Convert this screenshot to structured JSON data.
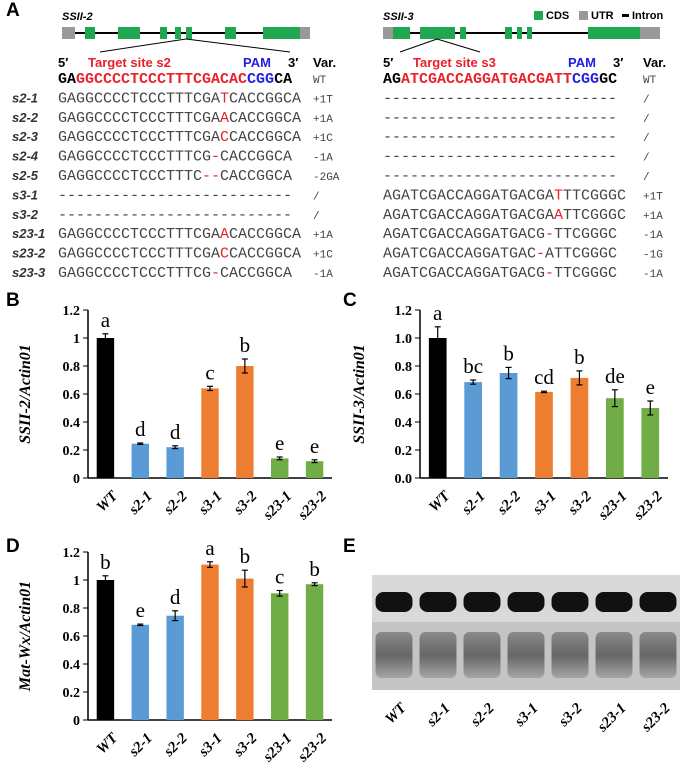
{
  "panel_labels": [
    "A",
    "B",
    "C",
    "D",
    "E"
  ],
  "panel_a": {
    "genes": [
      "SSII-2",
      "SSII-3"
    ],
    "legend": [
      "CDS",
      "UTR",
      "Intron"
    ],
    "headers": [
      {
        "five": "5′",
        "target": "Target site s2",
        "three": "3′",
        "pam": "PAM",
        "var": "Var."
      },
      {
        "five": "5′",
        "target": "Target site s3",
        "three": "3′",
        "pam": "PAM",
        "var": "Var."
      }
    ],
    "rows": [
      {
        "label": null,
        "bold": true,
        "left": {
          "segments": [
            {
              "text": "GA",
              "color": "#000000"
            },
            {
              "text": "GGCCCCTCCCTTTCGACAC",
              "color": "#e8222a"
            },
            {
              "text": "CGG",
              "color": "#1f1fdd"
            },
            {
              "text": "CA",
              "color": "#000000"
            }
          ],
          "var": "WT"
        },
        "right": {
          "segments": [
            {
              "text": "AG",
              "color": "#000000"
            },
            {
              "text": "ATCGACCAGGATGACGATT",
              "color": "#e8222a"
            },
            {
              "text": "CGG",
              "color": "#1f1fdd"
            },
            {
              "text": "GC",
              "color": "#000000"
            }
          ],
          "var": "WT"
        }
      },
      {
        "label": "s2-1",
        "left": {
          "segments": [
            {
              "text": "GAGGCCCCTCCCTTTCGA",
              "color": "#444444"
            },
            {
              "text": "T",
              "color": "#e8222a"
            },
            {
              "text": "CACCGGCA",
              "color": "#444444"
            }
          ],
          "var": "+1T"
        },
        "right": {
          "segments": [
            {
              "text": "--------------------------",
              "color": "#444444"
            }
          ],
          "var": "/"
        }
      },
      {
        "label": "s2-2",
        "left": {
          "segments": [
            {
              "text": "GAGGCCCCTCCCTTTCGA",
              "color": "#444444"
            },
            {
              "text": "A",
              "color": "#e8222a"
            },
            {
              "text": "CACCGGCA",
              "color": "#444444"
            }
          ],
          "var": "+1A"
        },
        "right": {
          "segments": [
            {
              "text": "--------------------------",
              "color": "#444444"
            }
          ],
          "var": "/"
        }
      },
      {
        "label": "s2-3",
        "left": {
          "segments": [
            {
              "text": "GAGGCCCCTCCCTTTCGA",
              "color": "#444444"
            },
            {
              "text": "C",
              "color": "#e8222a"
            },
            {
              "text": "CACCGGCA",
              "color": "#444444"
            }
          ],
          "var": "+1C"
        },
        "right": {
          "segments": [
            {
              "text": "--------------------------",
              "color": "#444444"
            }
          ],
          "var": "/"
        }
      },
      {
        "label": "s2-4",
        "left": {
          "segments": [
            {
              "text": "GAGGCCCCTCCCTTTCG",
              "color": "#444444"
            },
            {
              "text": "-",
              "color": "#e8222a"
            },
            {
              "text": "CACCGGCA",
              "color": "#444444"
            }
          ],
          "var": "-1A"
        },
        "right": {
          "segments": [
            {
              "text": "--------------------------",
              "color": "#444444"
            }
          ],
          "var": "/"
        }
      },
      {
        "label": "s2-5",
        "left": {
          "segments": [
            {
              "text": "GAGGCCCCTCCCTTTC",
              "color": "#444444"
            },
            {
              "text": "--",
              "color": "#e8222a"
            },
            {
              "text": "CACCGGCA",
              "color": "#444444"
            }
          ],
          "var": "-2GA"
        },
        "right": {
          "segments": [
            {
              "text": "--------------------------",
              "color": "#444444"
            }
          ],
          "var": "/"
        }
      },
      {
        "label": "s3-1",
        "left": {
          "segments": [
            {
              "text": "--------------------------",
              "color": "#444444"
            }
          ],
          "var": "/"
        },
        "right": {
          "segments": [
            {
              "text": "AGATCGACCAGGATGACGA",
              "color": "#444444"
            },
            {
              "text": "T",
              "color": "#e8222a"
            },
            {
              "text": "TTCGGGC",
              "color": "#444444"
            }
          ],
          "var": "+1T"
        }
      },
      {
        "label": "s3-2",
        "left": {
          "segments": [
            {
              "text": "--------------------------",
              "color": "#444444"
            }
          ],
          "var": "/"
        },
        "right": {
          "segments": [
            {
              "text": "AGATCGACCAGGATGACGA",
              "color": "#444444"
            },
            {
              "text": "A",
              "color": "#e8222a"
            },
            {
              "text": "TTCGGGC",
              "color": "#444444"
            }
          ],
          "var": "+1A"
        }
      },
      {
        "label": "s23-1",
        "left": {
          "segments": [
            {
              "text": "GAGGCCCCTCCCTTTCGA",
              "color": "#444444"
            },
            {
              "text": "A",
              "color": "#e8222a"
            },
            {
              "text": "CACCGGCA",
              "color": "#444444"
            }
          ],
          "var": "+1A"
        },
        "right": {
          "segments": [
            {
              "text": "AGATCGACCAGGATGACG",
              "color": "#444444"
            },
            {
              "text": "-",
              "color": "#e8222a"
            },
            {
              "text": "TTCGGGC",
              "color": "#444444"
            }
          ],
          "var": "-1A"
        }
      },
      {
        "label": "s23-2",
        "left": {
          "segments": [
            {
              "text": "GAGGCCCCTCCCTTTCGA",
              "color": "#444444"
            },
            {
              "text": "C",
              "color": "#e8222a"
            },
            {
              "text": "CACCGGCA",
              "color": "#444444"
            }
          ],
          "var": "+1C"
        },
        "right": {
          "segments": [
            {
              "text": "AGATCGACCAGGATGAC",
              "color": "#444444"
            },
            {
              "text": "-",
              "color": "#e8222a"
            },
            {
              "text": "ATTCGGGC",
              "color": "#444444"
            }
          ],
          "var": "-1G"
        }
      },
      {
        "label": "s23-3",
        "left": {
          "segments": [
            {
              "text": "GAGGCCCCTCCCTTTCG",
              "color": "#444444"
            },
            {
              "text": "-",
              "color": "#e8222a"
            },
            {
              "text": "CACCGGCA",
              "color": "#444444"
            }
          ],
          "var": "-1A"
        },
        "right": {
          "segments": [
            {
              "text": "AGATCGACCAGGATGACG",
              "color": "#444444"
            },
            {
              "text": "-",
              "color": "#e8222a"
            },
            {
              "text": "TTCGGGC",
              "color": "#444444"
            }
          ],
          "var": "-1A"
        }
      }
    ]
  },
  "chart_data": [
    {
      "type": "bar",
      "y_label": "SSII-2/Actin01",
      "categories": [
        "WT",
        "s2-1",
        "s2-2",
        "s3-1",
        "s3-2",
        "s23-1",
        "s23-2"
      ],
      "values": [
        1.0,
        0.245,
        0.22,
        0.64,
        0.8,
        0.14,
        0.12
      ],
      "errors": [
        0.03,
        0.005,
        0.01,
        0.015,
        0.05,
        0.01,
        0.01
      ],
      "annotations": [
        "a",
        "d",
        "d",
        "c",
        "b",
        "e",
        "e"
      ],
      "colors": [
        "#000000",
        "#5b9bd5",
        "#5b9bd5",
        "#ed7d31",
        "#ed7d31",
        "#70ad47",
        "#70ad47"
      ],
      "ylim": [
        0,
        1.2
      ],
      "yticks": [
        0,
        0.2,
        0.4,
        0.6,
        0.8,
        1,
        1.2
      ]
    },
    {
      "type": "bar",
      "y_label": "SSII-3/Actin01",
      "categories": [
        "WT",
        "s2-1",
        "s2-2",
        "s3-1",
        "s3-2",
        "s23-1",
        "s23-2"
      ],
      "values": [
        1.0,
        0.685,
        0.75,
        0.615,
        0.715,
        0.57,
        0.5
      ],
      "errors": [
        0.08,
        0.015,
        0.04,
        0.005,
        0.05,
        0.06,
        0.05
      ],
      "annotations": [
        "a",
        "bc",
        "b",
        "cd",
        "b",
        "de",
        "e"
      ],
      "colors": [
        "#000000",
        "#5b9bd5",
        "#5b9bd5",
        "#ed7d31",
        "#ed7d31",
        "#70ad47",
        "#70ad47"
      ],
      "ylim": [
        0,
        1.2
      ],
      "yticks": [
        {
          "value": 0,
          "label": "0.0"
        },
        0.2,
        0.4,
        0.6,
        0.8,
        {
          "value": 1,
          "label": "1.0"
        },
        1.2
      ]
    },
    {
      "type": "bar",
      "y_label": "Mat-Wx/Actin01",
      "categories": [
        "WT",
        "s2-1",
        "s2-2",
        "s3-1",
        "s3-2",
        "s23-1",
        "s23-2"
      ],
      "values": [
        1.0,
        0.68,
        0.745,
        1.11,
        1.01,
        0.905,
        0.97
      ],
      "errors": [
        0.03,
        0.005,
        0.035,
        0.02,
        0.06,
        0.02,
        0.01
      ],
      "annotations": [
        "b",
        "e",
        "d",
        "a",
        "b",
        "c",
        "b"
      ],
      "colors": [
        "#000000",
        "#5b9bd5",
        "#5b9bd5",
        "#ed7d31",
        "#ed7d31",
        "#70ad47",
        "#70ad47"
      ],
      "ylim": [
        0,
        1.2
      ],
      "yticks": [
        0,
        0.2,
        0.4,
        0.6,
        0.8,
        1,
        1.2
      ]
    }
  ],
  "panel_e": {
    "lanes": [
      "WT",
      "s2-1",
      "s2-2",
      "s3-1",
      "s3-2",
      "s23-1",
      "s23-2"
    ]
  }
}
